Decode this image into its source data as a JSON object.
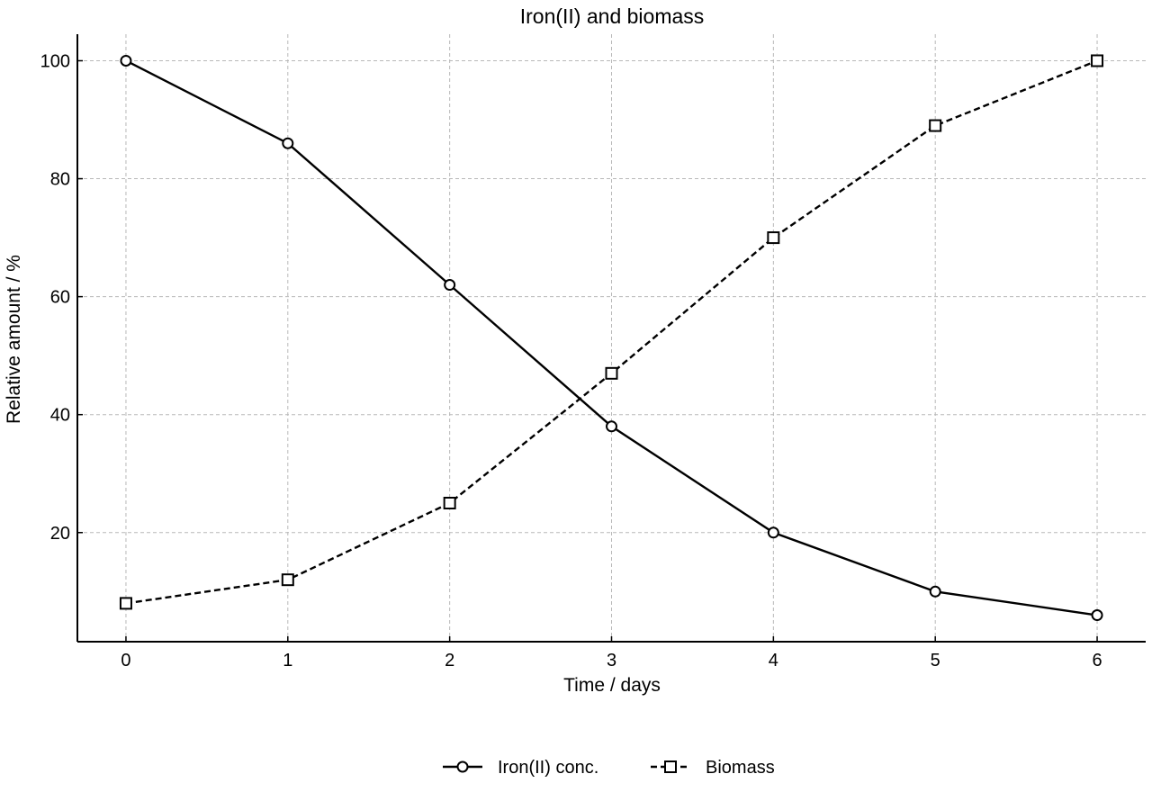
{
  "chart_data": {
    "type": "line",
    "title": "Iron(II) and biomass",
    "xlabel": "Time / days",
    "ylabel": "Relative amount / %",
    "x": [
      0,
      1,
      2,
      3,
      4,
      5,
      6
    ],
    "xlim": [
      -0.3,
      6.3
    ],
    "ylim": [
      1.5,
      104.5
    ],
    "xticks": [
      0,
      1,
      2,
      3,
      4,
      5,
      6
    ],
    "yticks": [
      20,
      40,
      60,
      80,
      100
    ],
    "grid": true,
    "legend_position": "bottom-center",
    "series": [
      {
        "name": "Iron(II) conc.",
        "values": [
          100,
          86,
          62,
          38,
          20,
          10,
          6
        ],
        "line_style": "solid",
        "marker": "circle",
        "color": "#000000"
      },
      {
        "name": "Biomass",
        "values": [
          8,
          12,
          25,
          47,
          70,
          89,
          100
        ],
        "line_style": "dashed",
        "marker": "square",
        "color": "#000000"
      }
    ]
  }
}
